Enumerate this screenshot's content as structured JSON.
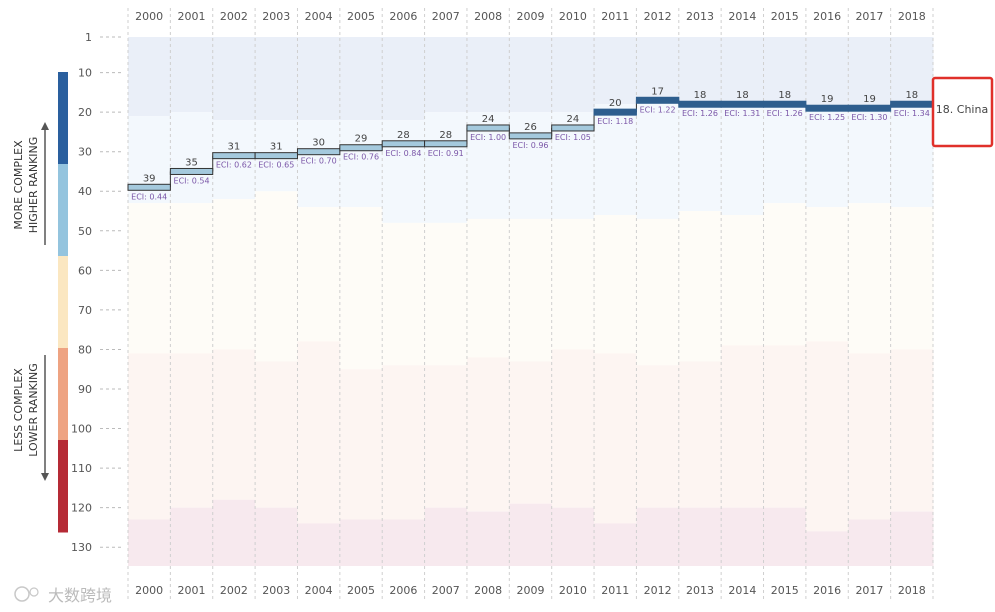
{
  "chart_data": {
    "type": "line",
    "title": "",
    "xlabel": "",
    "ylabel": "",
    "country_label": "18. China",
    "years": [
      "2000",
      "2001",
      "2002",
      "2003",
      "2004",
      "2005",
      "2006",
      "2007",
      "2008",
      "2009",
      "2010",
      "2011",
      "2012",
      "2013",
      "2014",
      "2015",
      "2016",
      "2017",
      "2018"
    ],
    "ranks": [
      39,
      35,
      31,
      31,
      30,
      29,
      28,
      28,
      24,
      26,
      24,
      20,
      17,
      18,
      18,
      18,
      19,
      19,
      18
    ],
    "eci_labels": [
      "ECI: 0.44",
      "ECI: 0.54",
      "ECI: 0.62",
      "ECI: 0.65",
      "ECI: 0.70",
      "ECI: 0.76",
      "ECI: 0.84",
      "ECI: 0.91",
      "ECI: 1.00",
      "ECI: 0.96",
      "ECI: 1.05",
      "ECI: 1.18",
      "ECI: 1.22",
      "ECI: 1.26",
      "ECI: 1.31",
      "ECI: 1.26",
      "ECI: 1.25",
      "ECI: 1.30",
      "ECI: 1.34"
    ],
    "y_ticks": [
      "1",
      "10",
      "20",
      "30",
      "40",
      "50",
      "60",
      "70",
      "80",
      "90",
      "100",
      "110",
      "120",
      "130"
    ],
    "y_tick_values": [
      1,
      10,
      20,
      30,
      40,
      50,
      60,
      70,
      80,
      90,
      100,
      110,
      120,
      130
    ],
    "ylim": [
      1,
      134
    ],
    "y_inverted": true,
    "bands": {
      "band1_bottom": [
        21,
        20,
        22,
        22,
        22,
        22,
        22,
        20,
        20,
        20,
        20,
        18,
        18,
        18,
        18,
        18,
        18,
        18,
        18
      ],
      "band2_bottom": [
        43,
        43,
        42,
        40,
        44,
        44,
        48,
        48,
        47,
        47,
        47,
        46,
        47,
        45,
        46,
        43,
        44,
        43,
        44
      ],
      "band3_bottom": [
        81,
        81,
        80,
        83,
        78,
        85,
        84,
        84,
        82,
        83,
        80,
        81,
        84,
        83,
        79,
        79,
        78,
        81,
        80
      ],
      "band4_bottom": [
        123,
        120,
        118,
        120,
        124,
        123,
        123,
        120,
        121,
        119,
        120,
        124,
        120,
        120,
        120,
        120,
        126,
        123,
        121
      ],
      "colors": [
        "#eaeff8",
        "#f3f8fd",
        "#fefcf7",
        "#fdf5f2",
        "#f7e9ee"
      ]
    },
    "line_colors": {
      "dark": "#2e5e8e",
      "light": "#a4c9dd",
      "outline": "#333333"
    },
    "side_labels": {
      "top_line1": "MORE COMPLEX",
      "top_line2": "HIGHER RANKING",
      "bottom_line1": "LESS COMPLEX",
      "bottom_line2": "LOWER RANKING"
    },
    "side_bar_colors": [
      "#2a5f9e",
      "#94c4de",
      "#fbe7c1",
      "#eea382",
      "#b52a35"
    ]
  },
  "watermark": "大数跨境"
}
